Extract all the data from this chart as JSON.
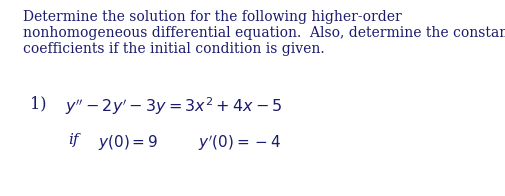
{
  "background_color": "#ffffff",
  "text_color": "#1a1a6e",
  "header_line1": "Determine the solution for the following higher-order",
  "header_line2": "nonhomogeneous differential equation.  Also, determine the constant",
  "header_line3": "coefficients if the initial condition is given.",
  "header_fontsize": 10.0,
  "eq_fontsize": 11.5,
  "cond_fontsize": 11.0,
  "fig_width": 5.06,
  "fig_height": 1.96,
  "dpi": 100
}
